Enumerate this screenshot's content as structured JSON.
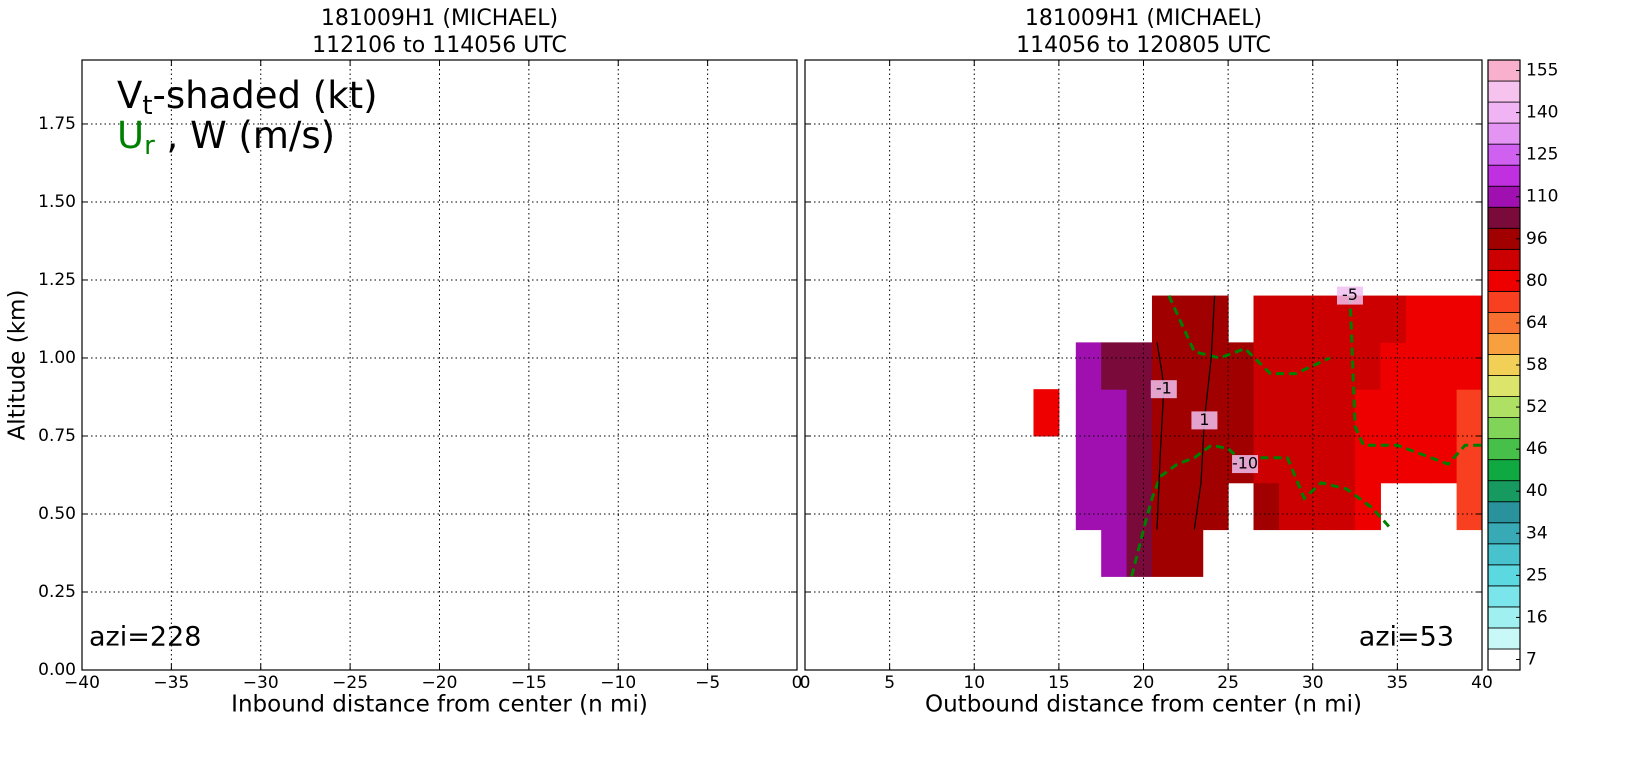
{
  "chart_data": [
    {
      "type": "contour",
      "title": "181009H1 (MICHAEL)",
      "subtitle": "112106 to 114056 UTC",
      "xlabel": "Inbound distance from center (n mi)",
      "ylabel": "Altitude (km)",
      "annotation": "azi=228",
      "legend_lines": [
        {
          "main": "V",
          "sub": "t",
          "rest": "-shaded (kt)",
          "color": "#000000"
        },
        {
          "main": "U",
          "sub": "r",
          "rest": " , W (m/s)",
          "color": "#008000"
        }
      ],
      "xlim": [
        -40,
        0
      ],
      "ylim": [
        0,
        1.955
      ],
      "xticks": [
        {
          "value": -40,
          "label": "−40"
        },
        {
          "value": -35,
          "label": "−35"
        },
        {
          "value": -30,
          "label": "−30"
        },
        {
          "value": -25,
          "label": "−25"
        },
        {
          "value": -20,
          "label": "−20"
        },
        {
          "value": -15,
          "label": "−15"
        },
        {
          "value": -10,
          "label": "−10"
        },
        {
          "value": -5,
          "label": "−5"
        },
        0
      ],
      "yticks": [
        {
          "value": 0,
          "label": "0.00"
        },
        {
          "value": 0.25,
          "label": "0.25"
        },
        {
          "value": 0.5,
          "label": "0.50"
        },
        {
          "value": 0.75,
          "label": "0.75"
        },
        {
          "value": 1,
          "label": "1.00"
        },
        {
          "value": 1.25,
          "label": "1.25"
        },
        {
          "value": 1.5,
          "label": "1.50"
        },
        {
          "value": 1.75,
          "label": "1.75"
        }
      ],
      "grid": true
    },
    {
      "type": "contour",
      "title": "181009H1 (MICHAEL)",
      "subtitle": "114056 to 120805 UTC",
      "xlabel": "Outbound distance from center (n mi)",
      "annotation": "azi=53",
      "xlim": [
        0,
        40
      ],
      "ylim": [
        0,
        1.955
      ],
      "xticks": [
        0,
        5,
        10,
        15,
        20,
        25,
        30,
        35,
        40
      ],
      "yticks": [
        0,
        0.25,
        0.5,
        0.75,
        1,
        1.25,
        1.5,
        1.75
      ],
      "show_ytick_labels": false,
      "grid": true,
      "field": {
        "x_edges": [
          13.5,
          15,
          16,
          17.5,
          19,
          20.5,
          22,
          23.5,
          25,
          26.5,
          28,
          29.5,
          31,
          32.5,
          34,
          35.5,
          37,
          38.5,
          40
        ],
        "y_edges": [
          0.3,
          0.45,
          0.6,
          0.75,
          0.9,
          1.05,
          1.2
        ],
        "values": [
          [
            null,
            null,
            null,
            110,
            104,
            98,
            98,
            null,
            null,
            null,
            null,
            null,
            null,
            null,
            null,
            null,
            null,
            null
          ],
          [
            null,
            null,
            110,
            110,
            104,
            98,
            98,
            97,
            null,
            96,
            94,
            92,
            88,
            86,
            null,
            null,
            null,
            78
          ],
          [
            null,
            null,
            112,
            110,
            104,
            98,
            98,
            97,
            96,
            95,
            93,
            90,
            88,
            86,
            84,
            82,
            80,
            78
          ],
          [
            85,
            null,
            112,
            110,
            104,
            98,
            98,
            97,
            96,
            95,
            93,
            90,
            88,
            86,
            84,
            82,
            80,
            78
          ],
          [
            null,
            null,
            110,
            108,
            104,
            98,
            98,
            97,
            96,
            95,
            94,
            92,
            90,
            88,
            86,
            84,
            82,
            80
          ],
          [
            null,
            null,
            null,
            null,
            null,
            96,
            96,
            96,
            null,
            95,
            94,
            93,
            92,
            90,
            88,
            86,
            84,
            82
          ]
        ]
      },
      "contours": [
        {
          "level": -10,
          "color": "#008000",
          "dashed": true,
          "x": [
            19.3,
            20,
            20.5,
            21,
            22,
            23,
            24,
            25,
            26,
            27,
            28.5,
            29.5,
            30.5,
            32,
            33.5,
            34.5
          ],
          "y": [
            0.3,
            0.45,
            0.55,
            0.62,
            0.66,
            0.68,
            0.72,
            0.71,
            0.66,
            0.68,
            0.68,
            0.55,
            0.6,
            0.58,
            0.52,
            0.46
          ]
        },
        {
          "level": -5,
          "color": "#008000",
          "dashed": true,
          "x": [
            21.5,
            23,
            24.5,
            26,
            27.5,
            29,
            31,
            null,
            32.2,
            32.5,
            33,
            35,
            37,
            38,
            39,
            40
          ],
          "y": [
            1.2,
            1.02,
            1.0,
            1.03,
            0.95,
            0.95,
            1.0,
            null,
            1.2,
            0.78,
            0.72,
            0.72,
            0.68,
            0.66,
            0.72,
            0.72
          ]
        },
        {
          "level": 1,
          "color": "#000000",
          "dashed": false,
          "x": [
            24.2,
            24.0,
            23.6,
            23.4,
            23.0
          ],
          "y": [
            1.2,
            1.0,
            0.8,
            0.6,
            0.45
          ]
        },
        {
          "level": -1,
          "color": "#000000",
          "dashed": false,
          "x": [
            20.8,
            21.1,
            21.2,
            21.0,
            20.8
          ],
          "y": [
            1.05,
            0.95,
            0.9,
            0.7,
            0.45
          ]
        }
      ],
      "colorbar": {
        "levels": [
          7,
          11,
          16,
          20,
          25,
          29,
          34,
          37,
          40,
          43,
          46,
          49,
          52,
          55,
          58,
          61,
          64,
          72,
          80,
          88,
          96,
          103,
          110,
          118,
          125,
          133,
          140,
          148,
          155
        ],
        "colors": [
          "#ffffff",
          "#c8f8f8",
          "#a0f0f2",
          "#7ae6ec",
          "#5cd8e0",
          "#48c2cc",
          "#38aab6",
          "#2a929c",
          "#169a60",
          "#10a840",
          "#46c048",
          "#80d458",
          "#aee064",
          "#dce46c",
          "#f2d058",
          "#f8a040",
          "#f87030",
          "#f84020",
          "#ee0000",
          "#cc0000",
          "#a00000",
          "#7a0a3a",
          "#a010b0",
          "#c030e0",
          "#d060f0",
          "#e494f2",
          "#f0b4f4",
          "#f6c2ee",
          "#f8b0cc"
        ],
        "ticks": [
          7,
          16,
          25,
          34,
          40,
          46,
          52,
          58,
          64,
          80,
          96,
          110,
          125,
          140,
          155
        ]
      }
    }
  ]
}
